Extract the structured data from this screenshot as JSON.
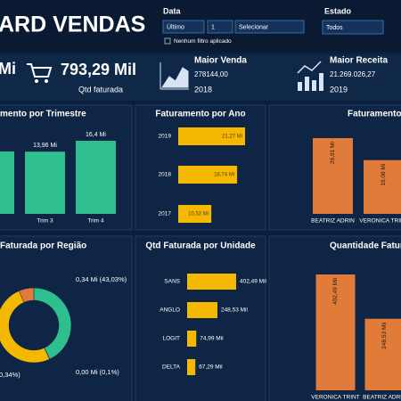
{
  "header": {
    "title": "ARD VENDAS"
  },
  "filters": {
    "date_label": "Data",
    "period": "Último",
    "count": "1",
    "unit": "Selecionar",
    "note": "Nenhum filtro aplicado",
    "state_label": "Estado",
    "state": "Todos"
  },
  "kpis": [
    {
      "value": "Mi"
    },
    {
      "value": "793,29 Mil",
      "label": "Qtd faturada"
    },
    {
      "title": "Maior Venda",
      "value": "278144,00",
      "sub": "2018"
    },
    {
      "title": "Maior Receita",
      "value": "21.269.026,27",
      "sub": "2019"
    }
  ],
  "charts": [
    {
      "type": "bar",
      "title": "mento por Trimestre",
      "categories": [
        null,
        "Trim 3",
        "Trim 4"
      ],
      "values": [
        14,
        13.96,
        16.4
      ],
      "value_labels": [
        null,
        "13,96 Mi",
        "16,4 Mi"
      ],
      "color": "#2fbf8f"
    },
    {
      "type": "hbar",
      "title": "Faturamento por Ano",
      "categories": [
        "2019",
        "2018",
        "2017"
      ],
      "values": [
        21.27,
        18.74,
        10.53
      ],
      "value_labels": [
        "21,27 Mi",
        "18,74 Mi",
        "10,53 Mi"
      ],
      "color": "#f5b800"
    },
    {
      "type": "bar",
      "title": "Faturamento",
      "categories": [
        "BEATRIZ ADRIN",
        "VERONICA TRINT"
      ],
      "values": [
        26.91,
        19.08
      ],
      "value_labels": [
        "26,91 Mi",
        "19,08 Mi"
      ],
      "color": "#e07b39",
      "rotated_labels": true
    },
    {
      "type": "donut",
      "title": "Faturada por Região",
      "values": [
        43.03,
        0.1,
        50.34,
        6.53
      ],
      "value_labels": [
        "0,34 Mi (43,03%)",
        "0,00 Mi (0,1%)",
        "0,34%)",
        null
      ],
      "colors": [
        "#2fbf8f",
        "#9aa4b0",
        "#f5b800",
        "#e07b39"
      ]
    },
    {
      "type": "hbar",
      "title": "Qtd Faturada por Unidade",
      "categories": [
        "SANS",
        "ANGLO",
        "LOGIT",
        "DELTA"
      ],
      "values": [
        402.49,
        248.53,
        74.99,
        67.29
      ],
      "value_labels": [
        "402,49 Mil",
        "248,53 Mil",
        "74,99 Mil",
        "67,29 Mil"
      ],
      "color": "#f5b800"
    },
    {
      "type": "bar",
      "title": "Quantidade Fatur",
      "categories": [
        "VERONICA TRINT",
        "BEATRIZ ADRIN"
      ],
      "values": [
        402.49,
        248.53
      ],
      "value_labels": [
        "402,49 Mil",
        "248,53 Mil"
      ],
      "color": "#e07b39",
      "rotated_labels": true
    }
  ]
}
